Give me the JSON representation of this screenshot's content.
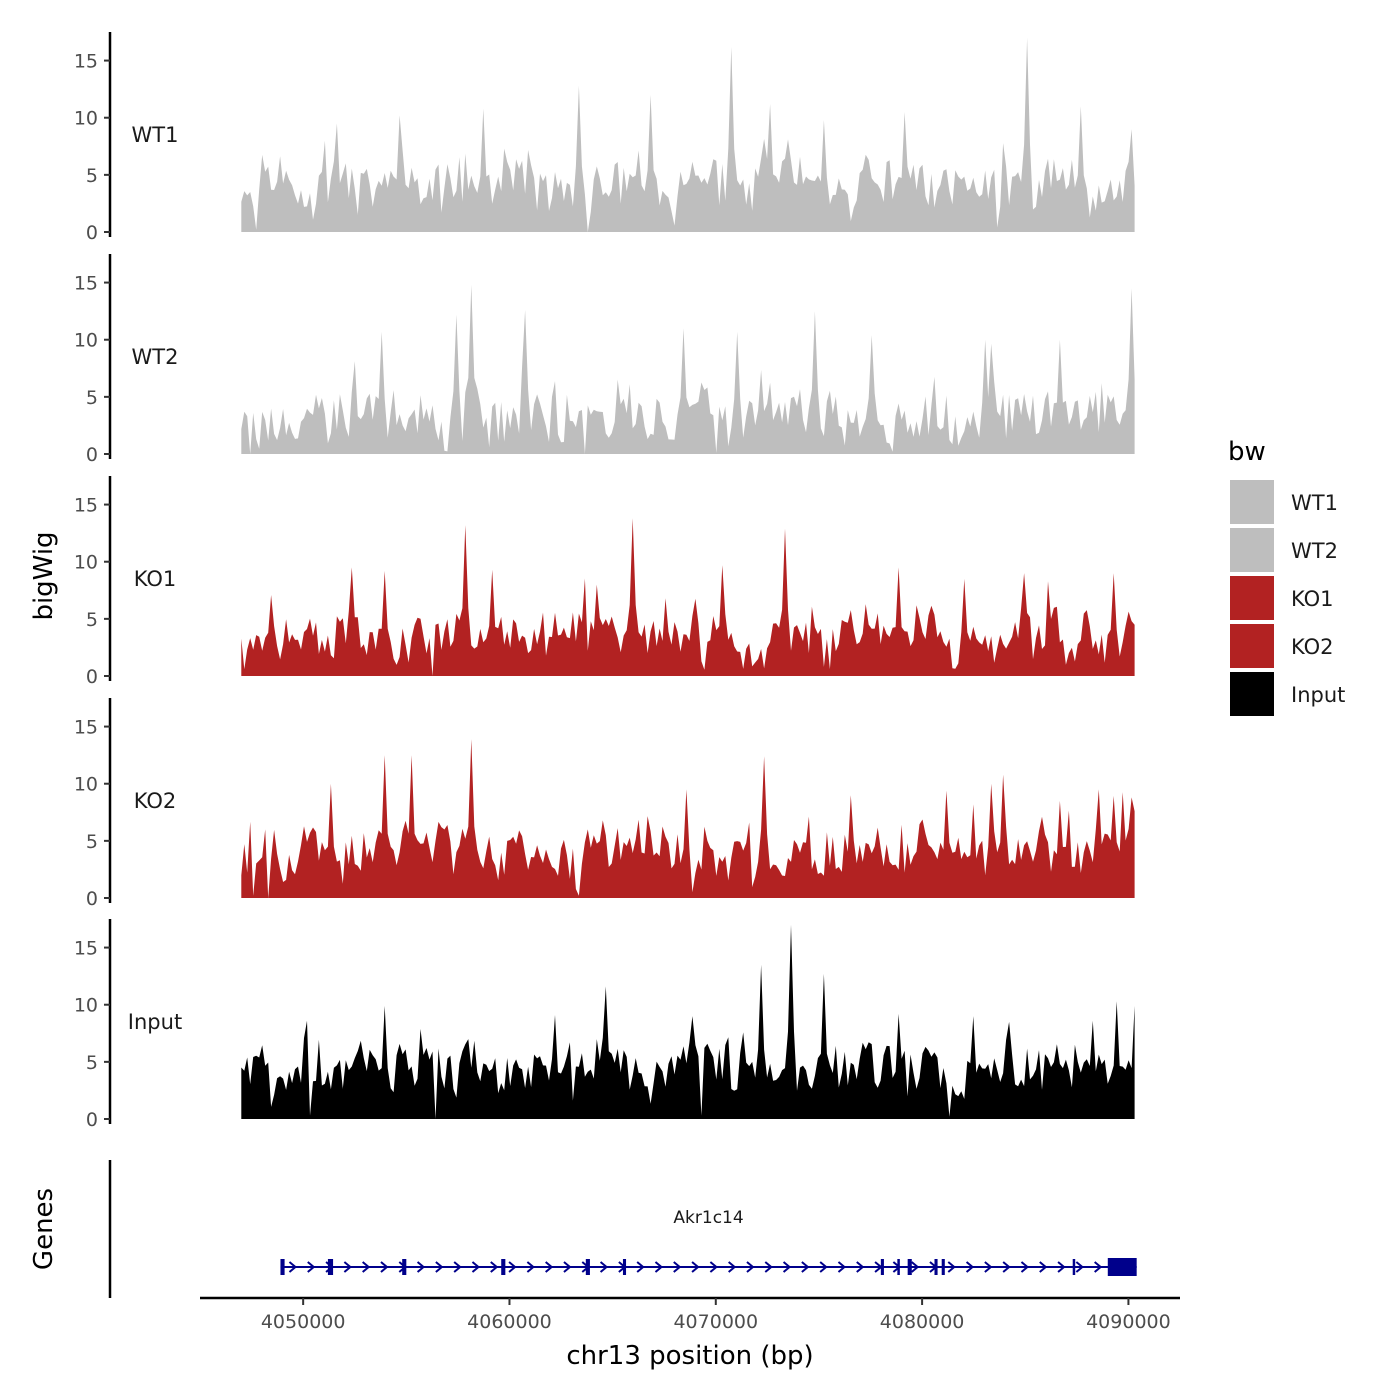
{
  "chart_data": {
    "type": "area",
    "chromosome": "chr13",
    "xlabel": "chr13 position (bp)",
    "ylabel": "bigWig",
    "genes_panel_label": "Genes",
    "xlim": [
      4045000,
      4092500
    ],
    "x_ticks": [
      4050000,
      4060000,
      4070000,
      4080000,
      4090000
    ],
    "x_tick_labels": [
      "4050000",
      "4060000",
      "4070000",
      "4080000",
      "4090000"
    ],
    "ylim": [
      0,
      17.5
    ],
    "y_ticks": [
      0,
      5,
      10,
      15
    ],
    "y_tick_labels": [
      "0",
      "5",
      "10",
      "15"
    ],
    "data_range": [
      4047000,
      4090300
    ],
    "legend": {
      "title": "bw",
      "position": "right",
      "entries": [
        {
          "label": "WT1",
          "color": "#bebebe"
        },
        {
          "label": "WT2",
          "color": "#bebebe"
        },
        {
          "label": "KO1",
          "color": "#b22222"
        },
        {
          "label": "KO2",
          "color": "#b22222"
        },
        {
          "label": "Input",
          "color": "#000000"
        }
      ]
    },
    "series": [
      {
        "name": "WT1",
        "color": "#bebebe",
        "seed": 11,
        "base": 4.0,
        "spread": 2.6,
        "peaks": [
          [
            4051700,
            9.5
          ],
          [
            4054700,
            10.2
          ],
          [
            4058800,
            10.8
          ],
          [
            4063300,
            12.8
          ],
          [
            4066900,
            12.0
          ],
          [
            4070800,
            16.2
          ],
          [
            4072700,
            11.2
          ],
          [
            4075200,
            9.8
          ],
          [
            4079200,
            10.5
          ],
          [
            4085100,
            17.0
          ],
          [
            4087700,
            11.0
          ],
          [
            4090200,
            9.0
          ]
        ],
        "dips": [
          [
            4047700,
            0.2
          ],
          [
            4063800,
            0.0
          ],
          [
            4083700,
            0.4
          ]
        ]
      },
      {
        "name": "WT2",
        "color": "#bebebe",
        "seed": 23,
        "base": 3.2,
        "spread": 2.6,
        "peaks": [
          [
            4053800,
            10.7
          ],
          [
            4057400,
            12.2
          ],
          [
            4058200,
            14.8
          ],
          [
            4060700,
            12.6
          ],
          [
            4068400,
            11.0
          ],
          [
            4071100,
            10.7
          ],
          [
            4074800,
            12.5
          ],
          [
            4077600,
            10.4
          ],
          [
            4083000,
            10.0
          ],
          [
            4086700,
            10.0
          ],
          [
            4090200,
            14.5
          ]
        ],
        "dips": [
          [
            4047500,
            0.0
          ],
          [
            4063600,
            0.0
          ],
          [
            4070000,
            0.1
          ],
          [
            4078500,
            0.2
          ]
        ]
      },
      {
        "name": "KO1",
        "color": "#b22222",
        "seed": 37,
        "base": 3.3,
        "spread": 2.4,
        "peaks": [
          [
            4052300,
            9.5
          ],
          [
            4054000,
            9.2
          ],
          [
            4057800,
            13.2
          ],
          [
            4059200,
            9.3
          ],
          [
            4064200,
            8.0
          ],
          [
            4065900,
            13.8
          ],
          [
            4067600,
            6.8
          ],
          [
            4070300,
            9.7
          ],
          [
            4073300,
            12.9
          ],
          [
            4078800,
            9.5
          ],
          [
            4082000,
            8.5
          ],
          [
            4085000,
            9.0
          ],
          [
            4089300,
            9.0
          ]
        ],
        "dips": [
          [
            4056300,
            0.0
          ],
          [
            4075200,
            0.8
          ],
          [
            4075500,
            0.6
          ]
        ]
      },
      {
        "name": "KO2",
        "color": "#b22222",
        "seed": 53,
        "base": 4.0,
        "spread": 2.6,
        "peaks": [
          [
            4051400,
            10.0
          ],
          [
            4054000,
            12.5
          ],
          [
            4055200,
            12.5
          ],
          [
            4058100,
            13.9
          ],
          [
            4063800,
            6.0
          ],
          [
            4068600,
            9.5
          ],
          [
            4072300,
            12.4
          ],
          [
            4076600,
            9.0
          ],
          [
            4081200,
            9.4
          ],
          [
            4083300,
            10.0
          ],
          [
            4084000,
            10.8
          ],
          [
            4086700,
            8.5
          ],
          [
            4088500,
            9.5
          ],
          [
            4090200,
            8.8
          ]
        ],
        "dips": [
          [
            4048300,
            0.0
          ],
          [
            4047600,
            0.2
          ],
          [
            4063400,
            0.2
          ],
          [
            4068800,
            0.5
          ]
        ]
      },
      {
        "name": "Input",
        "color": "#000000",
        "seed": 71,
        "base": 4.2,
        "spread": 2.6,
        "peaks": [
          [
            4050200,
            8.6
          ],
          [
            4053900,
            9.9
          ],
          [
            4062200,
            9.1
          ],
          [
            4064700,
            11.6
          ],
          [
            4068800,
            9.0
          ],
          [
            4072200,
            13.5
          ],
          [
            4073700,
            17.0
          ],
          [
            4075300,
            12.7
          ],
          [
            4078800,
            9.2
          ],
          [
            4082500,
            9.0
          ],
          [
            4084200,
            8.5
          ],
          [
            4088300,
            8.6
          ],
          [
            4089500,
            10.3
          ],
          [
            4090300,
            9.9
          ]
        ],
        "dips": [
          [
            4050400,
            0.3
          ],
          [
            4056400,
            0.0
          ],
          [
            4069300,
            0.3
          ],
          [
            4081300,
            0.2
          ]
        ]
      }
    ],
    "gene": {
      "name": "Akr1c14",
      "strand": "+",
      "color": "#00008b",
      "start": 4048900,
      "end": 4090400,
      "exons": [
        [
          4048900,
          4049100
        ],
        [
          4051200,
          4051450
        ],
        [
          4054800,
          4055000
        ],
        [
          4059600,
          4059800
        ],
        [
          4063700,
          4063900
        ],
        [
          4065500,
          4065650
        ],
        [
          4078000,
          4078150
        ],
        [
          4078800,
          4078900
        ],
        [
          4079300,
          4079500
        ],
        [
          4080600,
          4080750
        ],
        [
          4080950,
          4081100
        ],
        [
          4087300,
          4087400
        ],
        [
          4089000,
          4090400
        ]
      ]
    }
  }
}
